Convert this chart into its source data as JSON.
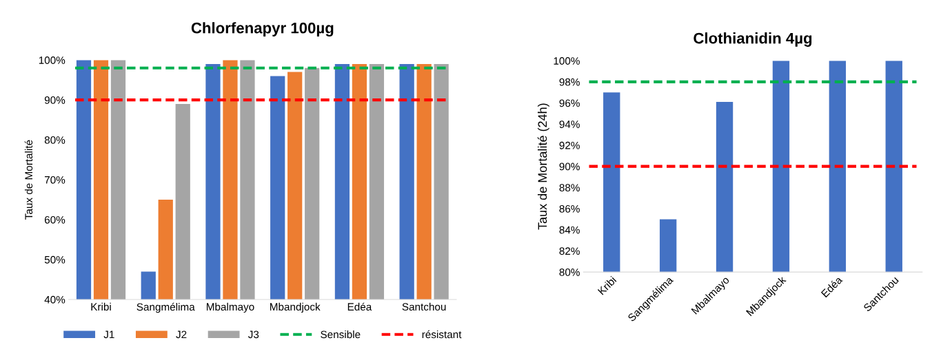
{
  "chart_data": [
    {
      "type": "bar",
      "title": "Chlorfenapyr 100µg",
      "ylabel": "Taux de Mortalité",
      "categories": [
        "Kribi",
        "Sangmélima",
        "Mbalmayo",
        "Mbandjock",
        "Edéa",
        "Santchou"
      ],
      "series": [
        {
          "name": "J1",
          "color": "#4472c4",
          "values": [
            100,
            47,
            99,
            96,
            99,
            99
          ]
        },
        {
          "name": "J2",
          "color": "#ed7d31",
          "values": [
            100,
            65,
            100,
            97,
            99,
            99
          ]
        },
        {
          "name": "J3",
          "color": "#a5a5a5",
          "values": [
            100,
            89,
            100,
            98,
            99,
            99
          ]
        }
      ],
      "ylim": [
        40,
        100
      ],
      "yticks": [
        {
          "value": 40,
          "label": "40%"
        },
        {
          "value": 50,
          "label": "50%"
        },
        {
          "value": 60,
          "label": "60%"
        },
        {
          "value": 70,
          "label": "70%"
        },
        {
          "value": 80,
          "label": "80%"
        },
        {
          "value": 90,
          "label": "90%"
        },
        {
          "value": 100,
          "label": "100%"
        }
      ],
      "ref_lines": [
        {
          "axis": "y",
          "value": 98,
          "label": "Sensible",
          "color": "#00b050",
          "line_style": "dashed"
        },
        {
          "axis": "y",
          "value": 90,
          "label": "résistant",
          "color": "#ff0000",
          "line_style": "dashed"
        }
      ],
      "grid": false,
      "legend": "bottom"
    },
    {
      "type": "bar",
      "title": "Clothianidin 4µg",
      "ylabel": "Taux de Mortalité (24h)",
      "categories": [
        "Kribi",
        "Sangmélima",
        "Mbalmayo",
        "Mbandjock",
        "Edéa",
        "Santchou"
      ],
      "series": [
        {
          "color": "#4472c4",
          "values": [
            97,
            85,
            96.1,
            100,
            100,
            100
          ]
        }
      ],
      "ylim": [
        80,
        100
      ],
      "yticks": [
        {
          "value": 80,
          "label": "80%"
        },
        {
          "value": 82,
          "label": "82%"
        },
        {
          "value": 84,
          "label": "84%"
        },
        {
          "value": 86,
          "label": "86%"
        },
        {
          "value": 88,
          "label": "88%"
        },
        {
          "value": 90,
          "label": "90%"
        },
        {
          "value": 92,
          "label": "92%"
        },
        {
          "value": 94,
          "label": "94%"
        },
        {
          "value": 96,
          "label": "96%"
        },
        {
          "value": 98,
          "label": "98%"
        },
        {
          "value": 100,
          "label": "100%"
        }
      ],
      "ref_lines": [
        {
          "axis": "y",
          "value": 98,
          "color": "#00b050",
          "line_style": "dashed"
        },
        {
          "axis": "y",
          "value": 90,
          "color": "#ff0000",
          "line_style": "dashed"
        }
      ],
      "grid": false,
      "legend": false
    }
  ]
}
